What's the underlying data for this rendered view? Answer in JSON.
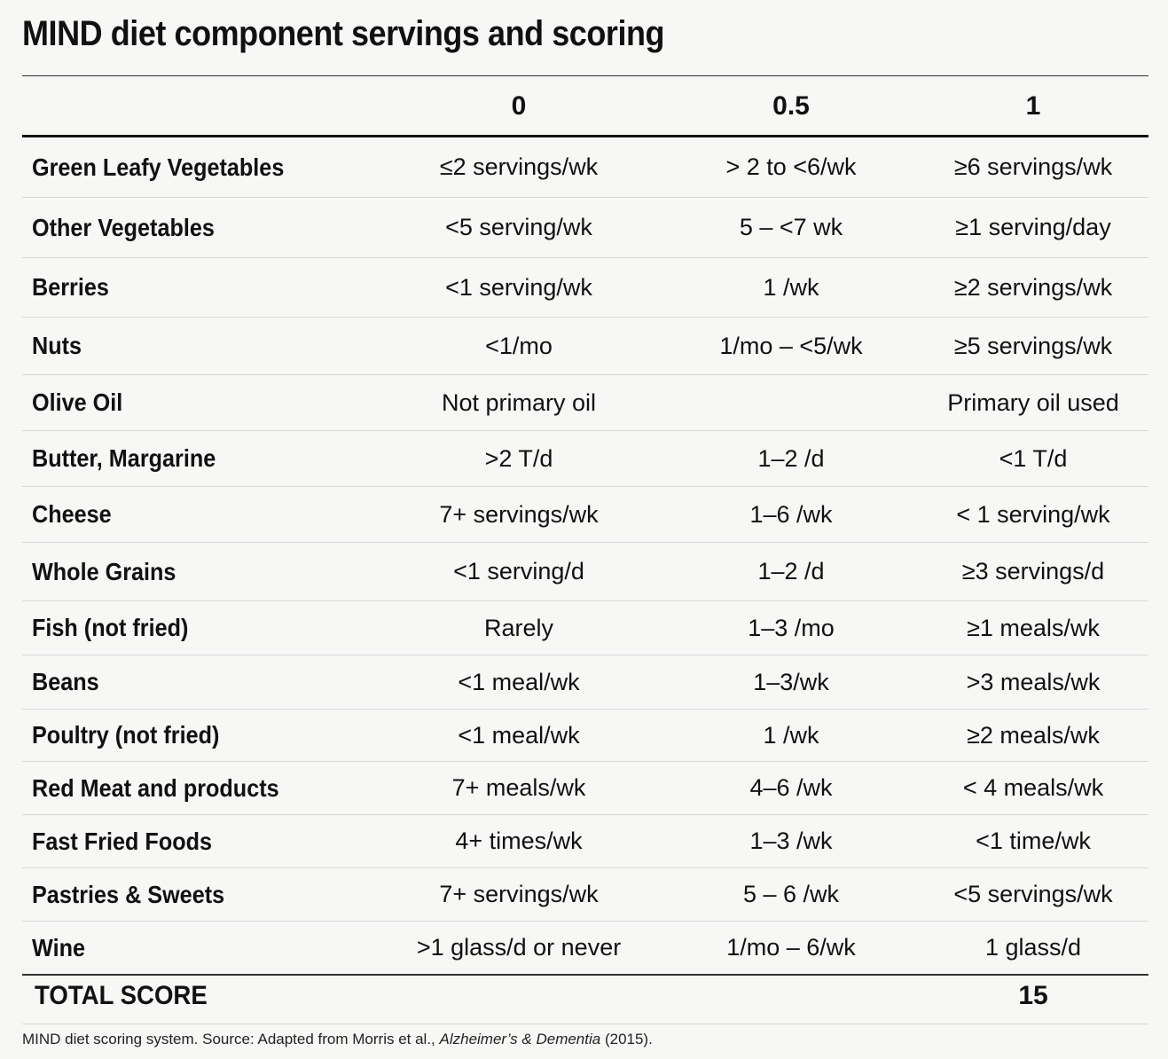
{
  "title": "MIND diet component servings and scoring",
  "header": {
    "col0": "0",
    "col1": "0.5",
    "col2": "1"
  },
  "rows": [
    {
      "label": "Green Leafy Vegetables",
      "s0": "≤2 servings/wk",
      "s05": "> 2 to <6/wk",
      "s1": "≥6 servings/wk"
    },
    {
      "label": "Other Vegetables",
      "s0": "<5 serving/wk",
      "s05": "5 – <7 wk",
      "s1": "≥1 serving/day"
    },
    {
      "label": "Berries",
      "s0": "<1 serving/wk",
      "s05": "1 /wk",
      "s1": "≥2 servings/wk"
    },
    {
      "label": "Nuts",
      "s0": "<1/mo",
      "s05": "1/mo – <5/wk",
      "s1": "≥5 servings/wk"
    },
    {
      "label": "Olive Oil",
      "s0": "Not primary oil",
      "s05": "",
      "s1": "Primary oil used"
    },
    {
      "label": "Butter, Margarine",
      "s0": ">2 T/d",
      "s05": "1–2 /d",
      "s1": "<1 T/d"
    },
    {
      "label": "Cheese",
      "s0": "7+ servings/wk",
      "s05": "1–6 /wk",
      "s1": "< 1 serving/wk"
    },
    {
      "label": "Whole Grains",
      "s0": "<1 serving/d",
      "s05": "1–2 /d",
      "s1": "≥3 servings/d"
    },
    {
      "label": "Fish (not fried)",
      "s0": "Rarely",
      "s05": "1–3 /mo",
      "s1": "≥1 meals/wk"
    },
    {
      "label": "Beans",
      "s0": "<1 meal/wk",
      "s05": "1–3/wk",
      "s1": ">3 meals/wk"
    },
    {
      "label": "Poultry (not fried)",
      "s0": "<1 meal/wk",
      "s05": "1 /wk",
      "s1": "≥2 meals/wk"
    },
    {
      "label": "Red Meat and products",
      "s0": "7+ meals/wk",
      "s05": "4–6 /wk",
      "s1": "< 4 meals/wk"
    },
    {
      "label": "Fast Fried Foods",
      "s0": "4+ times/wk",
      "s05": "1–3 /wk",
      "s1": "<1 time/wk"
    },
    {
      "label": "Pastries & Sweets",
      "s0": "7+ servings/wk",
      "s05": "5 – 6 /wk",
      "s1": "<5 servings/wk"
    },
    {
      "label": "Wine",
      "s0": ">1 glass/d or never",
      "s05": "1/mo – 6/wk",
      "s1": "1 glass/d"
    }
  ],
  "total": {
    "label": "TOTAL SCORE",
    "value": "15"
  },
  "caption": {
    "prefix": "MIND diet scoring system. Source: Adapted from Morris et al., ",
    "journal": "Alzheimer’s & Dementia",
    "suffix": " (2015)."
  }
}
